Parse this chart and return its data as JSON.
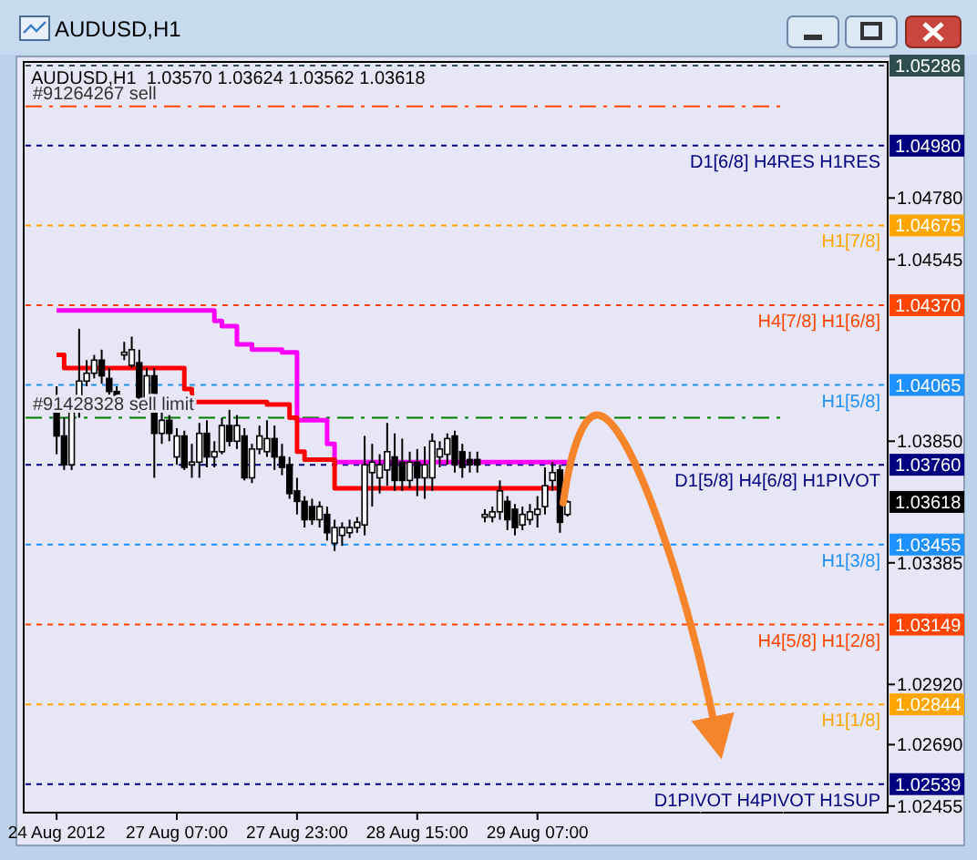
{
  "chart_data": {
    "type": "candlestick",
    "title": "AUDUSD,H1",
    "subtitle": "AUDUSD,H1  1.03570 1.03624 1.03562 1.03618",
    "categories": [
      "24 Aug 2012",
      null,
      null,
      null,
      null,
      null,
      null,
      null,
      null,
      null,
      null,
      null,
      null,
      null,
      null,
      null,
      "27 Aug 07:00",
      null,
      null,
      null,
      null,
      null,
      null,
      null,
      null,
      null,
      null,
      null,
      null,
      null,
      null,
      null,
      "27 Aug 23:00",
      null,
      null,
      null,
      null,
      null,
      null,
      null,
      null,
      null,
      null,
      null,
      null,
      null,
      null,
      null,
      "28 Aug 15:00",
      null,
      null,
      null,
      null,
      null,
      null,
      null,
      null,
      null,
      null,
      null,
      null,
      null,
      null,
      null,
      "29 Aug 07:00",
      null,
      null,
      null,
      null
    ],
    "ohlc": [
      [
        1.0399,
        1.0406,
        1.038,
        1.0387
      ],
      [
        1.0387,
        1.0394,
        1.0374,
        1.0376
      ],
      [
        1.0376,
        1.0401,
        1.0374,
        1.0399
      ],
      [
        1.0399,
        1.0428,
        1.0394,
        1.0408
      ],
      [
        1.0408,
        1.0416,
        1.0406,
        1.0411
      ],
      [
        1.0411,
        1.0418,
        1.0409,
        1.0416
      ],
      [
        1.0416,
        1.042,
        1.0407,
        1.041
      ],
      [
        1.0409,
        1.0413,
        1.0401,
        1.0404
      ],
      [
        1.0404,
        1.0406,
        1.0398,
        1.04
      ],
      [
        1.0418,
        1.0423,
        1.0416,
        1.0419
      ],
      [
        1.0414,
        1.0425,
        1.0413,
        1.042
      ],
      [
        1.0415,
        1.042,
        1.0396,
        1.0399
      ],
      [
        1.04,
        1.0413,
        1.0397,
        1.041
      ],
      [
        1.041,
        1.0413,
        1.0371,
        1.0388
      ],
      [
        1.0388,
        1.0397,
        1.0384,
        1.0393
      ],
      [
        1.0393,
        1.0395,
        1.0385,
        1.0388
      ],
      [
        1.0379,
        1.039,
        1.0376,
        1.0387
      ],
      [
        1.0387,
        1.0389,
        1.0374,
        1.0375
      ],
      [
        1.0376,
        1.0384,
        1.0371,
        1.0377
      ],
      [
        1.0377,
        1.0392,
        1.0371,
        1.0388
      ],
      [
        1.0388,
        1.0393,
        1.0375,
        1.0379
      ],
      [
        1.0379,
        1.0385,
        1.0375,
        1.0381
      ],
      [
        1.0381,
        1.0394,
        1.038,
        1.0391
      ],
      [
        1.0391,
        1.0397,
        1.0383,
        1.0385
      ],
      [
        1.0385,
        1.0395,
        1.0382,
        1.0391
      ],
      [
        1.0387,
        1.039,
        1.037,
        1.0371
      ],
      [
        1.0371,
        1.0384,
        1.0369,
        1.0382
      ],
      [
        1.0382,
        1.0391,
        1.038,
        1.0387
      ],
      [
        1.0381,
        1.0393,
        1.0379,
        1.0386
      ],
      [
        1.0386,
        1.0391,
        1.0374,
        1.0379
      ],
      [
        1.0379,
        1.0384,
        1.0372,
        1.0375
      ],
      [
        1.0376,
        1.0379,
        1.0363,
        1.0365
      ],
      [
        1.0366,
        1.0371,
        1.0357,
        1.0362
      ],
      [
        1.0362,
        1.0364,
        1.0352,
        1.0355
      ],
      [
        1.036,
        1.0363,
        1.0353,
        1.0355
      ],
      [
        1.0355,
        1.0362,
        1.0352,
        1.036
      ],
      [
        1.0357,
        1.036,
        1.0347,
        1.035
      ],
      [
        1.0346,
        1.0355,
        1.0343,
        1.0352
      ],
      [
        1.0349,
        1.0354,
        1.0345,
        1.0352
      ],
      [
        1.035,
        1.0355,
        1.0348,
        1.0352
      ],
      [
        1.0352,
        1.0356,
        1.035,
        1.0354
      ],
      [
        1.0353,
        1.0387,
        1.0349,
        1.0376
      ],
      [
        1.0373,
        1.0384,
        1.036,
        1.0377
      ],
      [
        1.0371,
        1.038,
        1.0365,
        1.0376
      ],
      [
        1.0374,
        1.0392,
        1.0368,
        1.0381
      ],
      [
        1.0379,
        1.0388,
        1.0366,
        1.037
      ],
      [
        1.0377,
        1.0386,
        1.0366,
        1.037
      ],
      [
        1.037,
        1.0381,
        1.0367,
        1.0377
      ],
      [
        1.0377,
        1.0382,
        1.0364,
        1.0371
      ],
      [
        1.0371,
        1.0383,
        1.0363,
        1.0376
      ],
      [
        1.0371,
        1.0388,
        1.0366,
        1.0385
      ],
      [
        1.0379,
        1.0385,
        1.0375,
        1.0382
      ],
      [
        1.038,
        1.0388,
        1.0376,
        1.0386
      ],
      [
        1.0387,
        1.0389,
        1.0373,
        1.0376
      ],
      [
        1.0381,
        1.0384,
        1.0371,
        1.0375
      ],
      [
        1.0378,
        1.0381,
        1.0373,
        1.0376
      ],
      [
        1.0378,
        1.0381,
        1.0373,
        1.0376
      ],
      [
        1.0356,
        1.0359,
        1.0354,
        1.0357
      ],
      [
        1.0356,
        1.036,
        1.0354,
        1.0358
      ],
      [
        1.0358,
        1.037,
        1.0355,
        1.0366
      ],
      [
        1.0362,
        1.0364,
        1.0351,
        1.0355
      ],
      [
        1.0359,
        1.0361,
        1.0349,
        1.0352
      ],
      [
        1.0353,
        1.036,
        1.0351,
        1.0357
      ],
      [
        1.0355,
        1.0361,
        1.0353,
        1.0358
      ],
      [
        1.0357,
        1.0364,
        1.0352,
        1.0359
      ],
      [
        1.036,
        1.0375,
        1.0357,
        1.0368
      ],
      [
        1.037,
        1.0377,
        1.0366,
        1.0373
      ],
      [
        1.0374,
        1.0376,
        1.035,
        1.0354
      ],
      [
        1.0357,
        1.03624,
        1.03562,
        1.03618
      ]
    ],
    "series": [
      {
        "type": "step",
        "color": "#ff00ff",
        "values": [
          1.0435,
          1.0435,
          1.0435,
          1.0435,
          1.0435,
          1.0435,
          1.0435,
          1.0435,
          1.0435,
          1.0435,
          1.0435,
          1.0435,
          1.0435,
          1.0435,
          1.0435,
          1.0435,
          1.0435,
          1.0435,
          1.0435,
          1.0435,
          1.0435,
          1.0431,
          1.0429,
          1.0429,
          1.0422,
          1.0422,
          1.042,
          1.042,
          1.042,
          1.042,
          1.0419,
          1.0419,
          1.0393,
          1.0393,
          1.0393,
          1.0393,
          1.0384,
          1.0377,
          1.0377,
          1.0377,
          1.0377,
          1.0377,
          1.0377,
          1.0377,
          1.0377,
          1.0377,
          1.0377,
          1.0377,
          1.0377,
          1.0377,
          1.0377,
          1.0377,
          1.0377,
          1.0377,
          1.0377,
          1.0377,
          1.0377,
          1.0377,
          1.0377,
          1.0377,
          1.0377,
          1.0377,
          1.0377,
          1.0377,
          1.0377,
          1.0377,
          1.0377,
          1.0377,
          1.0377
        ]
      },
      {
        "type": "step",
        "color": "#ff0000",
        "values": [
          1.0418,
          1.0413,
          1.0413,
          1.0413,
          1.0413,
          1.0413,
          1.0413,
          1.0413,
          1.0413,
          1.0413,
          1.0413,
          1.0413,
          1.0413,
          1.0413,
          1.0413,
          1.0413,
          1.0413,
          1.0405,
          1.04,
          1.04,
          1.04,
          1.04,
          1.04,
          1.04,
          1.04,
          1.04,
          1.04,
          1.04,
          1.0399,
          1.0399,
          1.0399,
          1.0394,
          1.0381,
          1.0378,
          1.0378,
          1.0378,
          1.0378,
          1.0367,
          1.0367,
          1.0367,
          1.0367,
          1.0367,
          1.0367,
          1.0367,
          1.0367,
          1.0367,
          1.0367,
          1.0367,
          1.0367,
          1.0367,
          1.0367,
          1.0367,
          1.0367,
          1.0367,
          1.0367,
          1.0367,
          1.0367,
          1.0367,
          1.0367,
          1.0367,
          1.0367,
          1.0367,
          1.0367,
          1.0367,
          1.0367,
          1.0367,
          1.0367,
          1.0367,
          1.0367
        ]
      }
    ],
    "ylim": [
      1.0243,
      1.053
    ],
    "yticks": [
      {
        "value": 1.0478,
        "label": "1.04780"
      },
      {
        "value": 1.04545,
        "label": "1.04545"
      },
      {
        "value": 1.0385,
        "label": "1.03850"
      },
      {
        "value": 1.03385,
        "label": "1.03385"
      },
      {
        "value": 1.0292,
        "label": "1.02920"
      },
      {
        "value": 1.0269,
        "label": "1.02690"
      },
      {
        "value": 1.02455,
        "label": "1.02455"
      }
    ],
    "ref_lines": [
      {
        "axis": "y",
        "value": 1.05286,
        "label": "1.05286",
        "color": "#2f4f4f",
        "line_style": "dashed"
      },
      {
        "axis": "y",
        "value": 1.0513,
        "label": "#91264267 sell",
        "color": "#ff4500",
        "line_style": "dashdot"
      },
      {
        "axis": "y",
        "value": 1.0498,
        "label": "1.04980",
        "color": "#000080",
        "line_style": "dashed"
      },
      {
        "axis": "y",
        "value": 1.04675,
        "label": "1.04675",
        "color": "#ffa500",
        "line_style": "dashed"
      },
      {
        "axis": "y",
        "value": 1.0437,
        "label": "1.04370",
        "color": "#ff4500",
        "line_style": "dashed"
      },
      {
        "axis": "y",
        "value": 1.04065,
        "label": "1.04065",
        "color": "#1e90ff",
        "line_style": "dashed"
      },
      {
        "axis": "y",
        "value": 1.0394,
        "label": "#91428328 sell limit",
        "color": "#008000",
        "line_style": "dashdot"
      },
      {
        "axis": "y",
        "value": 1.0376,
        "label": "1.03760",
        "color": "#000080",
        "line_style": "dashed"
      },
      {
        "axis": "y",
        "value": 1.03455,
        "label": "1.03455",
        "color": "#1e90ff",
        "line_style": "dashed"
      },
      {
        "axis": "y",
        "value": 1.03149,
        "label": "1.03149",
        "color": "#ff4500",
        "line_style": "dashed"
      },
      {
        "axis": "y",
        "value": 1.02844,
        "label": "1.02844",
        "color": "#ffa500",
        "line_style": "dashed"
      },
      {
        "axis": "y",
        "value": 1.02539,
        "label": "1.02539",
        "color": "#000080",
        "line_style": "dashed"
      }
    ],
    "annotations": [
      {
        "text": "D1[6/8] H4RES H1RES",
        "y": 1.0498
      },
      {
        "text": "H1[7/8]",
        "y": 1.04675
      },
      {
        "text": "H4[7/8] H1[6/8]",
        "y": 1.0437
      },
      {
        "text": "H1[5/8]",
        "y": 1.04065
      },
      {
        "text": "D1[5/8] H4[6/8] H1PIVOT",
        "y": 1.0376
      },
      "1.03618",
      {
        "text": "H1[3/8]",
        "y": 1.03455
      },
      {
        "text": "H4[5/8] H1[2/8]",
        "y": 1.03149
      },
      {
        "text": "H1[1/8]",
        "y": 1.02844
      },
      {
        "text": "D1PIVOT H4PIVOT H1SUP",
        "y": 1.02539
      }
    ]
  }
}
